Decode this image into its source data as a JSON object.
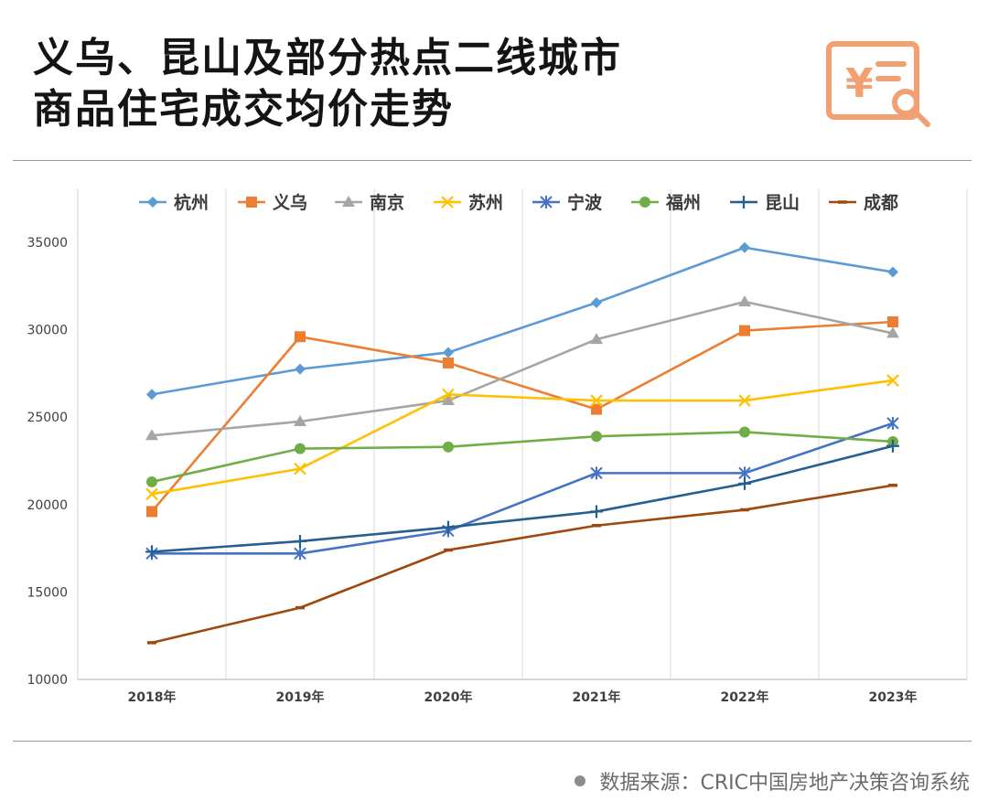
{
  "header": {
    "title_line1": "义乌、昆山及部分热点二线城市",
    "title_line2": "商品住宅成交均价走势",
    "logo_icon": "price-report-icon",
    "accent_color": "#f2a071"
  },
  "footer": {
    "source": "数据来源：CRIC中国房地产决策咨询系统"
  },
  "chart_data": {
    "type": "line",
    "categories": [
      "2018年",
      "2019年",
      "2020年",
      "2021年",
      "2022年",
      "2023年"
    ],
    "ylim": [
      10000,
      35000
    ],
    "yticks": [
      10000,
      15000,
      20000,
      25000,
      30000,
      35000
    ],
    "grid": "vertical",
    "legend": "top",
    "series": [
      {
        "name": "杭州",
        "color": "#5b9bd5",
        "marker": "diamond",
        "values": [
          26300,
          27750,
          28700,
          31550,
          34700,
          33300
        ]
      },
      {
        "name": "义乌",
        "color": "#ed7d31",
        "marker": "square",
        "values": [
          19600,
          29600,
          28100,
          25450,
          29950,
          30450
        ]
      },
      {
        "name": "南京",
        "color": "#a5a5a5",
        "marker": "triangle",
        "values": [
          23950,
          24750,
          25950,
          29450,
          31600,
          29800
        ]
      },
      {
        "name": "苏州",
        "color": "#ffc000",
        "marker": "x",
        "values": [
          20600,
          22050,
          26300,
          25950,
          25950,
          27100
        ]
      },
      {
        "name": "宁波",
        "color": "#4472c4",
        "marker": "star",
        "values": [
          17200,
          17200,
          18500,
          21800,
          21800,
          24650
        ]
      },
      {
        "name": "福州",
        "color": "#70ad47",
        "marker": "circle",
        "values": [
          21300,
          23200,
          23300,
          23900,
          24150,
          23600
        ]
      },
      {
        "name": "昆山",
        "color": "#255e91",
        "marker": "plus",
        "values": [
          17300,
          17900,
          18700,
          19600,
          21200,
          23350
        ]
      },
      {
        "name": "成都",
        "color": "#9e480e",
        "marker": "dash",
        "values": [
          12100,
          14100,
          17400,
          18800,
          19700,
          21100
        ]
      }
    ]
  }
}
